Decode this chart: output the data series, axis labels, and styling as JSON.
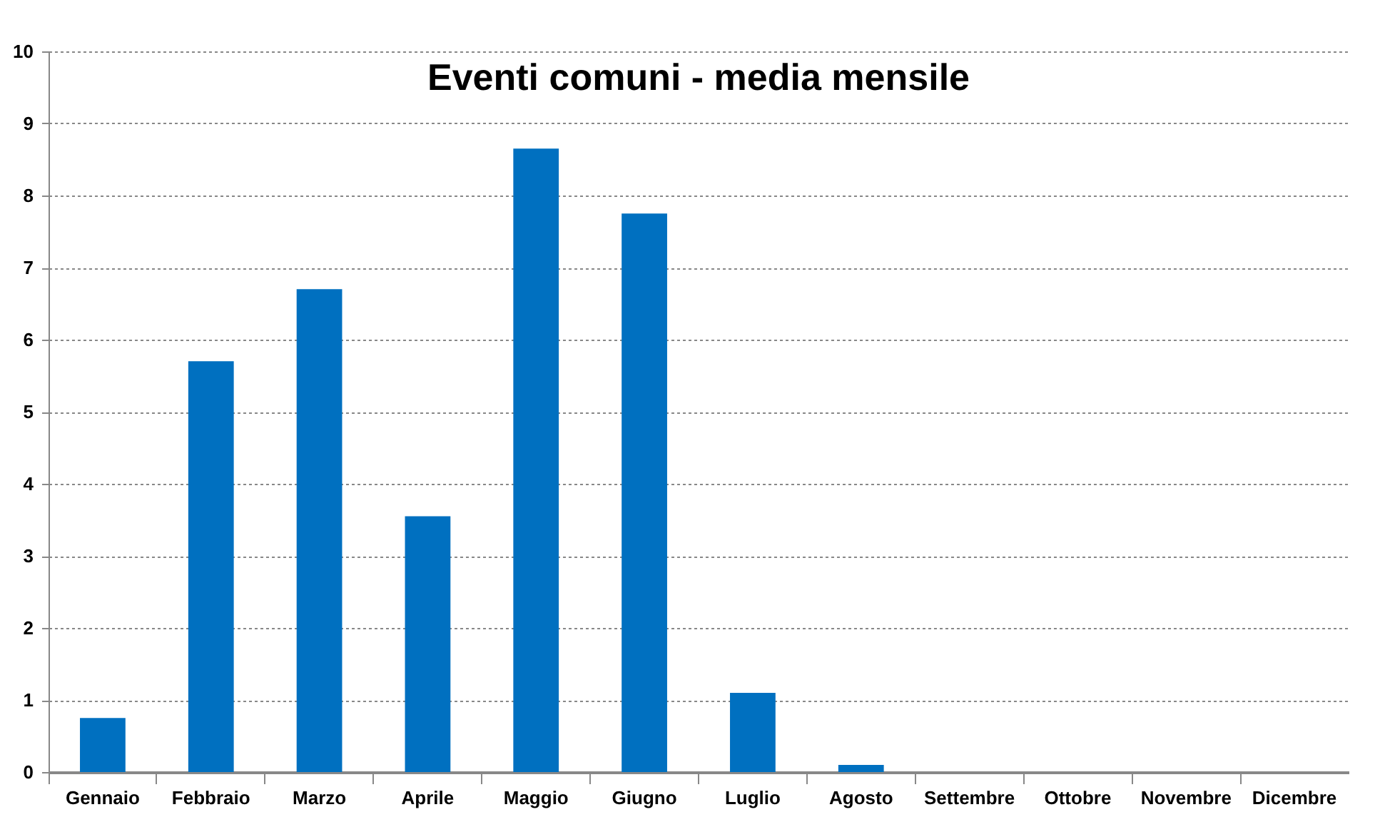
{
  "chart_data": {
    "type": "bar",
    "title": "Eventi comuni - media mensile",
    "categories": [
      "Gennaio",
      "Febbraio",
      "Marzo",
      "Aprile",
      "Maggio",
      "Giugno",
      "Luglio",
      "Agosto",
      "Settembre",
      "Ottobre",
      "Novembre",
      "Dicembre"
    ],
    "values": [
      0.75,
      5.7,
      6.7,
      3.55,
      8.65,
      7.75,
      1.1,
      0.1,
      0,
      0,
      0,
      0
    ],
    "color": "#0070c0",
    "ylim": [
      0,
      10
    ],
    "yticks": [
      0,
      1,
      2,
      3,
      4,
      5,
      6,
      7,
      8,
      9,
      10
    ],
    "grid": "y"
  }
}
